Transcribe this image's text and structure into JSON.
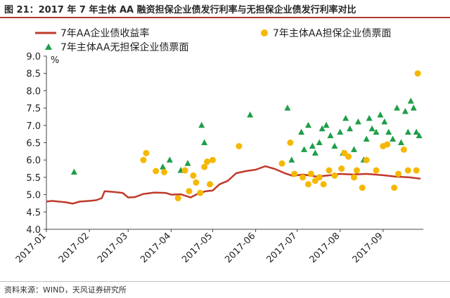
{
  "title": "图 21：2017 年 7 年主体 AA 融资担保企业债发行利率与无担保企业债发行利率对比",
  "source": "资料来源：WIND，天风证券研究所",
  "colors": {
    "line": "#c0392b",
    "guaranteed": "#f5b800",
    "unguaranteed": "#1e9e48",
    "accent": "#b03a2e"
  },
  "chart_data": {
    "type": "scatter",
    "ylabel": "%",
    "ylim": [
      4.0,
      9.0
    ],
    "yticks": [
      "4.0",
      "4.5",
      "5.0",
      "5.5",
      "6.0",
      "6.5",
      "7.0",
      "7.5",
      "8.0",
      "8.5",
      "9.0"
    ],
    "xlim": [
      "2017-01-01",
      "2017-09-30"
    ],
    "xticks": [
      "2017-01",
      "2017-02",
      "2017-03",
      "2017-04",
      "2017-05",
      "2017-06",
      "2017-07",
      "2017-08",
      "2017-09"
    ],
    "legend_placement": "top",
    "series": [
      {
        "name": "7年AA企业债收益率",
        "type": "line",
        "points": [
          [
            "2017-01-01",
            4.8
          ],
          [
            "2017-01-05",
            4.82
          ],
          [
            "2017-01-10",
            4.8
          ],
          [
            "2017-01-15",
            4.78
          ],
          [
            "2017-01-20",
            4.74
          ],
          [
            "2017-01-25",
            4.8
          ],
          [
            "2017-02-01",
            4.82
          ],
          [
            "2017-02-06",
            4.84
          ],
          [
            "2017-02-10",
            4.9
          ],
          [
            "2017-02-12",
            5.1
          ],
          [
            "2017-02-18",
            5.08
          ],
          [
            "2017-02-25",
            5.05
          ],
          [
            "2017-03-01",
            4.92
          ],
          [
            "2017-03-06",
            4.93
          ],
          [
            "2017-03-12",
            5.02
          ],
          [
            "2017-03-20",
            5.06
          ],
          [
            "2017-03-28",
            5.05
          ],
          [
            "2017-04-01",
            5.0
          ],
          [
            "2017-04-08",
            5.01
          ],
          [
            "2017-04-15",
            4.92
          ],
          [
            "2017-04-20",
            5.02
          ],
          [
            "2017-04-26",
            5.1
          ],
          [
            "2017-05-01",
            5.12
          ],
          [
            "2017-05-06",
            5.3
          ],
          [
            "2017-05-12",
            5.4
          ],
          [
            "2017-05-18",
            5.62
          ],
          [
            "2017-05-25",
            5.68
          ],
          [
            "2017-06-01",
            5.72
          ],
          [
            "2017-06-08",
            5.82
          ],
          [
            "2017-06-15",
            5.74
          ],
          [
            "2017-06-22",
            5.62
          ],
          [
            "2017-06-28",
            5.54
          ],
          [
            "2017-07-05",
            5.58
          ],
          [
            "2017-07-15",
            5.52
          ],
          [
            "2017-07-25",
            5.56
          ],
          [
            "2017-08-01",
            5.6
          ],
          [
            "2017-08-10",
            5.58
          ],
          [
            "2017-08-20",
            5.6
          ],
          [
            "2017-09-01",
            5.56
          ],
          [
            "2017-09-10",
            5.52
          ],
          [
            "2017-09-20",
            5.5
          ],
          [
            "2017-09-28",
            5.46
          ]
        ]
      },
      {
        "name": "7年主体AA担保企业债票面",
        "type": "scatter",
        "points": [
          [
            "2017-03-12",
            6.0
          ],
          [
            "2017-03-14",
            6.2
          ],
          [
            "2017-03-21",
            5.68
          ],
          [
            "2017-03-27",
            5.65
          ],
          [
            "2017-04-06",
            4.9
          ],
          [
            "2017-04-11",
            5.7
          ],
          [
            "2017-04-14",
            5.1
          ],
          [
            "2017-04-17",
            5.55
          ],
          [
            "2017-04-19",
            5.35
          ],
          [
            "2017-04-22",
            5.05
          ],
          [
            "2017-04-25",
            5.8
          ],
          [
            "2017-04-27",
            5.95
          ],
          [
            "2017-05-01",
            6.0
          ],
          [
            "2017-04-29",
            5.3
          ],
          [
            "2017-05-20",
            6.4
          ],
          [
            "2017-06-20",
            5.9
          ],
          [
            "2017-06-26",
            6.5
          ],
          [
            "2017-06-29",
            5.6
          ],
          [
            "2017-07-05",
            5.5
          ],
          [
            "2017-07-09",
            5.3
          ],
          [
            "2017-07-11",
            5.6
          ],
          [
            "2017-07-14",
            5.4
          ],
          [
            "2017-07-17",
            5.5
          ],
          [
            "2017-07-20",
            5.3
          ],
          [
            "2017-07-24",
            5.7
          ],
          [
            "2017-07-28",
            5.55
          ],
          [
            "2017-08-02",
            5.75
          ],
          [
            "2017-08-04",
            6.2
          ],
          [
            "2017-08-07",
            6.1
          ],
          [
            "2017-08-11",
            5.5
          ],
          [
            "2017-08-13",
            5.7
          ],
          [
            "2017-08-17",
            5.2
          ],
          [
            "2017-08-20",
            6.0
          ],
          [
            "2017-08-27",
            5.7
          ],
          [
            "2017-09-01",
            6.4
          ],
          [
            "2017-09-04",
            6.45
          ],
          [
            "2017-09-09",
            5.2
          ],
          [
            "2017-09-12",
            5.6
          ],
          [
            "2017-09-16",
            6.3
          ],
          [
            "2017-09-19",
            5.7
          ],
          [
            "2017-09-26",
            8.5
          ],
          [
            "2017-09-25",
            5.7
          ]
        ]
      },
      {
        "name": "7年主体AA无担保企业债票面",
        "type": "scatter",
        "points": [
          [
            "2017-01-21",
            5.65
          ],
          [
            "2017-03-26",
            5.8
          ],
          [
            "2017-03-31",
            6.0
          ],
          [
            "2017-04-08",
            5.7
          ],
          [
            "2017-04-13",
            5.9
          ],
          [
            "2017-04-23",
            7.0
          ],
          [
            "2017-04-25",
            6.5
          ],
          [
            "2017-05-28",
            7.3
          ],
          [
            "2017-06-24",
            7.5
          ],
          [
            "2017-06-27",
            6.0
          ],
          [
            "2017-07-04",
            6.8
          ],
          [
            "2017-07-06",
            6.3
          ],
          [
            "2017-07-09",
            7.0
          ],
          [
            "2017-07-12",
            6.4
          ],
          [
            "2017-07-14",
            6.2
          ],
          [
            "2017-07-17",
            6.5
          ],
          [
            "2017-07-19",
            6.9
          ],
          [
            "2017-07-22",
            7.0
          ],
          [
            "2017-07-25",
            6.7
          ],
          [
            "2017-07-28",
            6.4
          ],
          [
            "2017-08-01",
            6.8
          ],
          [
            "2017-08-03",
            6.2
          ],
          [
            "2017-08-05",
            7.2
          ],
          [
            "2017-08-08",
            6.9
          ],
          [
            "2017-08-11",
            6.3
          ],
          [
            "2017-08-14",
            7.1
          ],
          [
            "2017-08-18",
            6.0
          ],
          [
            "2017-08-20",
            6.6
          ],
          [
            "2017-08-22",
            7.2
          ],
          [
            "2017-08-24",
            6.9
          ],
          [
            "2017-08-27",
            6.8
          ],
          [
            "2017-08-30",
            7.3
          ],
          [
            "2017-09-02",
            7.1
          ],
          [
            "2017-09-05",
            6.8
          ],
          [
            "2017-09-08",
            6.6
          ],
          [
            "2017-09-11",
            7.5
          ],
          [
            "2017-09-14",
            6.5
          ],
          [
            "2017-09-17",
            7.4
          ],
          [
            "2017-09-19",
            6.8
          ],
          [
            "2017-09-21",
            7.7
          ],
          [
            "2017-09-23",
            7.5
          ],
          [
            "2017-09-25",
            6.8
          ],
          [
            "2017-09-27",
            6.7
          ]
        ]
      }
    ]
  }
}
